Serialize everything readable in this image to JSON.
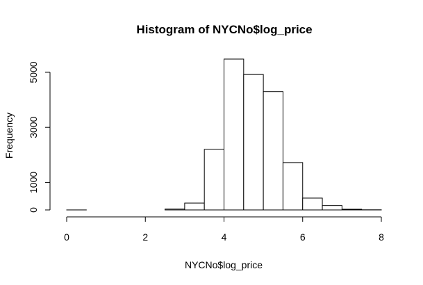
{
  "chart_data": {
    "type": "bar",
    "title": "Histogram of NYCNo$log_price",
    "xlabel": "NYCNo$log_price",
    "ylabel": "Frequency",
    "xlim": [
      0,
      8
    ],
    "ylim": [
      0,
      5500
    ],
    "x_ticks": [
      "0",
      "2",
      "4",
      "6",
      "8"
    ],
    "y_ticks": [
      "0",
      "1000",
      "3000",
      "5000"
    ],
    "bin_width": 0.5,
    "bins": [
      {
        "start": 0.0,
        "end": 0.5,
        "count": 1
      },
      {
        "start": 0.5,
        "end": 1.0,
        "count": 0
      },
      {
        "start": 1.0,
        "end": 1.5,
        "count": 0
      },
      {
        "start": 1.5,
        "end": 2.0,
        "count": 0
      },
      {
        "start": 2.0,
        "end": 2.5,
        "count": 0
      },
      {
        "start": 2.5,
        "end": 3.0,
        "count": 30
      },
      {
        "start": 3.0,
        "end": 3.5,
        "count": 250
      },
      {
        "start": 3.5,
        "end": 4.0,
        "count": 2200
      },
      {
        "start": 4.0,
        "end": 4.5,
        "count": 5480
      },
      {
        "start": 4.5,
        "end": 5.0,
        "count": 4920
      },
      {
        "start": 5.0,
        "end": 5.5,
        "count": 4300
      },
      {
        "start": 5.5,
        "end": 6.0,
        "count": 1720
      },
      {
        "start": 6.0,
        "end": 6.5,
        "count": 430
      },
      {
        "start": 6.5,
        "end": 7.0,
        "count": 160
      },
      {
        "start": 7.0,
        "end": 7.5,
        "count": 25
      },
      {
        "start": 7.5,
        "end": 8.0,
        "count": 5
      }
    ]
  }
}
